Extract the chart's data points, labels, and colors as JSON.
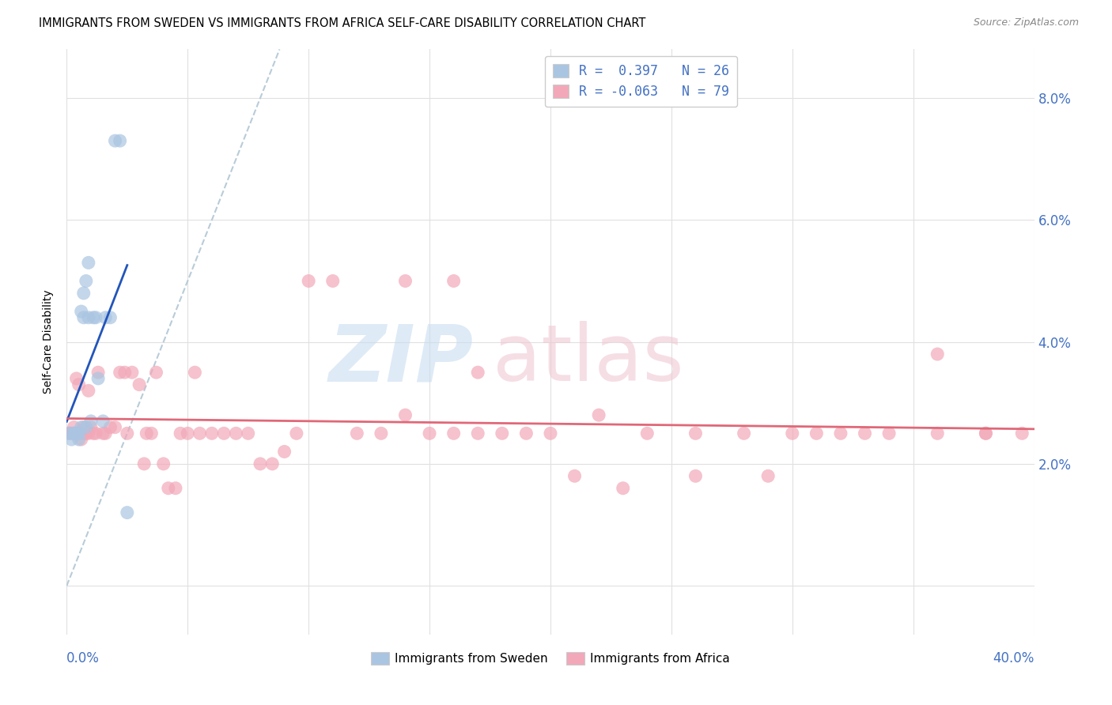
{
  "title": "IMMIGRANTS FROM SWEDEN VS IMMIGRANTS FROM AFRICA SELF-CARE DISABILITY CORRELATION CHART",
  "source": "Source: ZipAtlas.com",
  "xmin": 0.0,
  "xmax": 0.4,
  "ymin": -0.008,
  "ymax": 0.088,
  "ytick_vals": [
    0.0,
    0.02,
    0.04,
    0.06,
    0.08
  ],
  "ytick_labels": [
    "",
    "2.0%",
    "4.0%",
    "6.0%",
    "8.0%"
  ],
  "sweden_R": 0.397,
  "sweden_N": 26,
  "africa_R": -0.063,
  "africa_N": 79,
  "sweden_color": "#aac5e2",
  "africa_color": "#f2a8b8",
  "sweden_line_color": "#2255bb",
  "africa_line_color": "#e06878",
  "diag_color": "#b8ccd8",
  "axis_label_color": "#4472c4",
  "grid_color": "#e0e0e0",
  "sweden_x": [
    0.001,
    0.002,
    0.003,
    0.003,
    0.004,
    0.004,
    0.005,
    0.005,
    0.006,
    0.006,
    0.007,
    0.007,
    0.008,
    0.008,
    0.009,
    0.009,
    0.01,
    0.011,
    0.012,
    0.013,
    0.015,
    0.016,
    0.018,
    0.02,
    0.022,
    0.025
  ],
  "sweden_y": [
    0.025,
    0.024,
    0.025,
    0.025,
    0.025,
    0.025,
    0.025,
    0.024,
    0.026,
    0.045,
    0.044,
    0.048,
    0.026,
    0.05,
    0.044,
    0.053,
    0.027,
    0.044,
    0.044,
    0.034,
    0.027,
    0.044,
    0.044,
    0.073,
    0.073,
    0.012
  ],
  "africa_x": [
    0.001,
    0.002,
    0.003,
    0.003,
    0.004,
    0.004,
    0.005,
    0.005,
    0.006,
    0.006,
    0.007,
    0.007,
    0.008,
    0.009,
    0.009,
    0.01,
    0.011,
    0.012,
    0.013,
    0.015,
    0.016,
    0.018,
    0.02,
    0.022,
    0.024,
    0.025,
    0.027,
    0.03,
    0.032,
    0.033,
    0.035,
    0.037,
    0.04,
    0.042,
    0.045,
    0.047,
    0.05,
    0.053,
    0.055,
    0.06,
    0.065,
    0.07,
    0.075,
    0.08,
    0.085,
    0.09,
    0.095,
    0.1,
    0.11,
    0.12,
    0.13,
    0.14,
    0.15,
    0.16,
    0.17,
    0.18,
    0.2,
    0.22,
    0.24,
    0.26,
    0.28,
    0.3,
    0.32,
    0.34,
    0.36,
    0.38,
    0.395,
    0.38,
    0.36,
    0.33,
    0.31,
    0.29,
    0.26,
    0.23,
    0.21,
    0.19,
    0.17,
    0.16,
    0.14
  ],
  "africa_y": [
    0.025,
    0.025,
    0.026,
    0.025,
    0.025,
    0.034,
    0.025,
    0.033,
    0.025,
    0.024,
    0.025,
    0.026,
    0.025,
    0.025,
    0.032,
    0.026,
    0.025,
    0.025,
    0.035,
    0.025,
    0.025,
    0.026,
    0.026,
    0.035,
    0.035,
    0.025,
    0.035,
    0.033,
    0.02,
    0.025,
    0.025,
    0.035,
    0.02,
    0.016,
    0.016,
    0.025,
    0.025,
    0.035,
    0.025,
    0.025,
    0.025,
    0.025,
    0.025,
    0.02,
    0.02,
    0.022,
    0.025,
    0.05,
    0.05,
    0.025,
    0.025,
    0.028,
    0.025,
    0.025,
    0.025,
    0.025,
    0.025,
    0.028,
    0.025,
    0.025,
    0.025,
    0.025,
    0.025,
    0.025,
    0.025,
    0.025,
    0.025,
    0.025,
    0.038,
    0.025,
    0.025,
    0.018,
    0.018,
    0.016,
    0.018,
    0.025,
    0.035,
    0.05,
    0.05
  ]
}
